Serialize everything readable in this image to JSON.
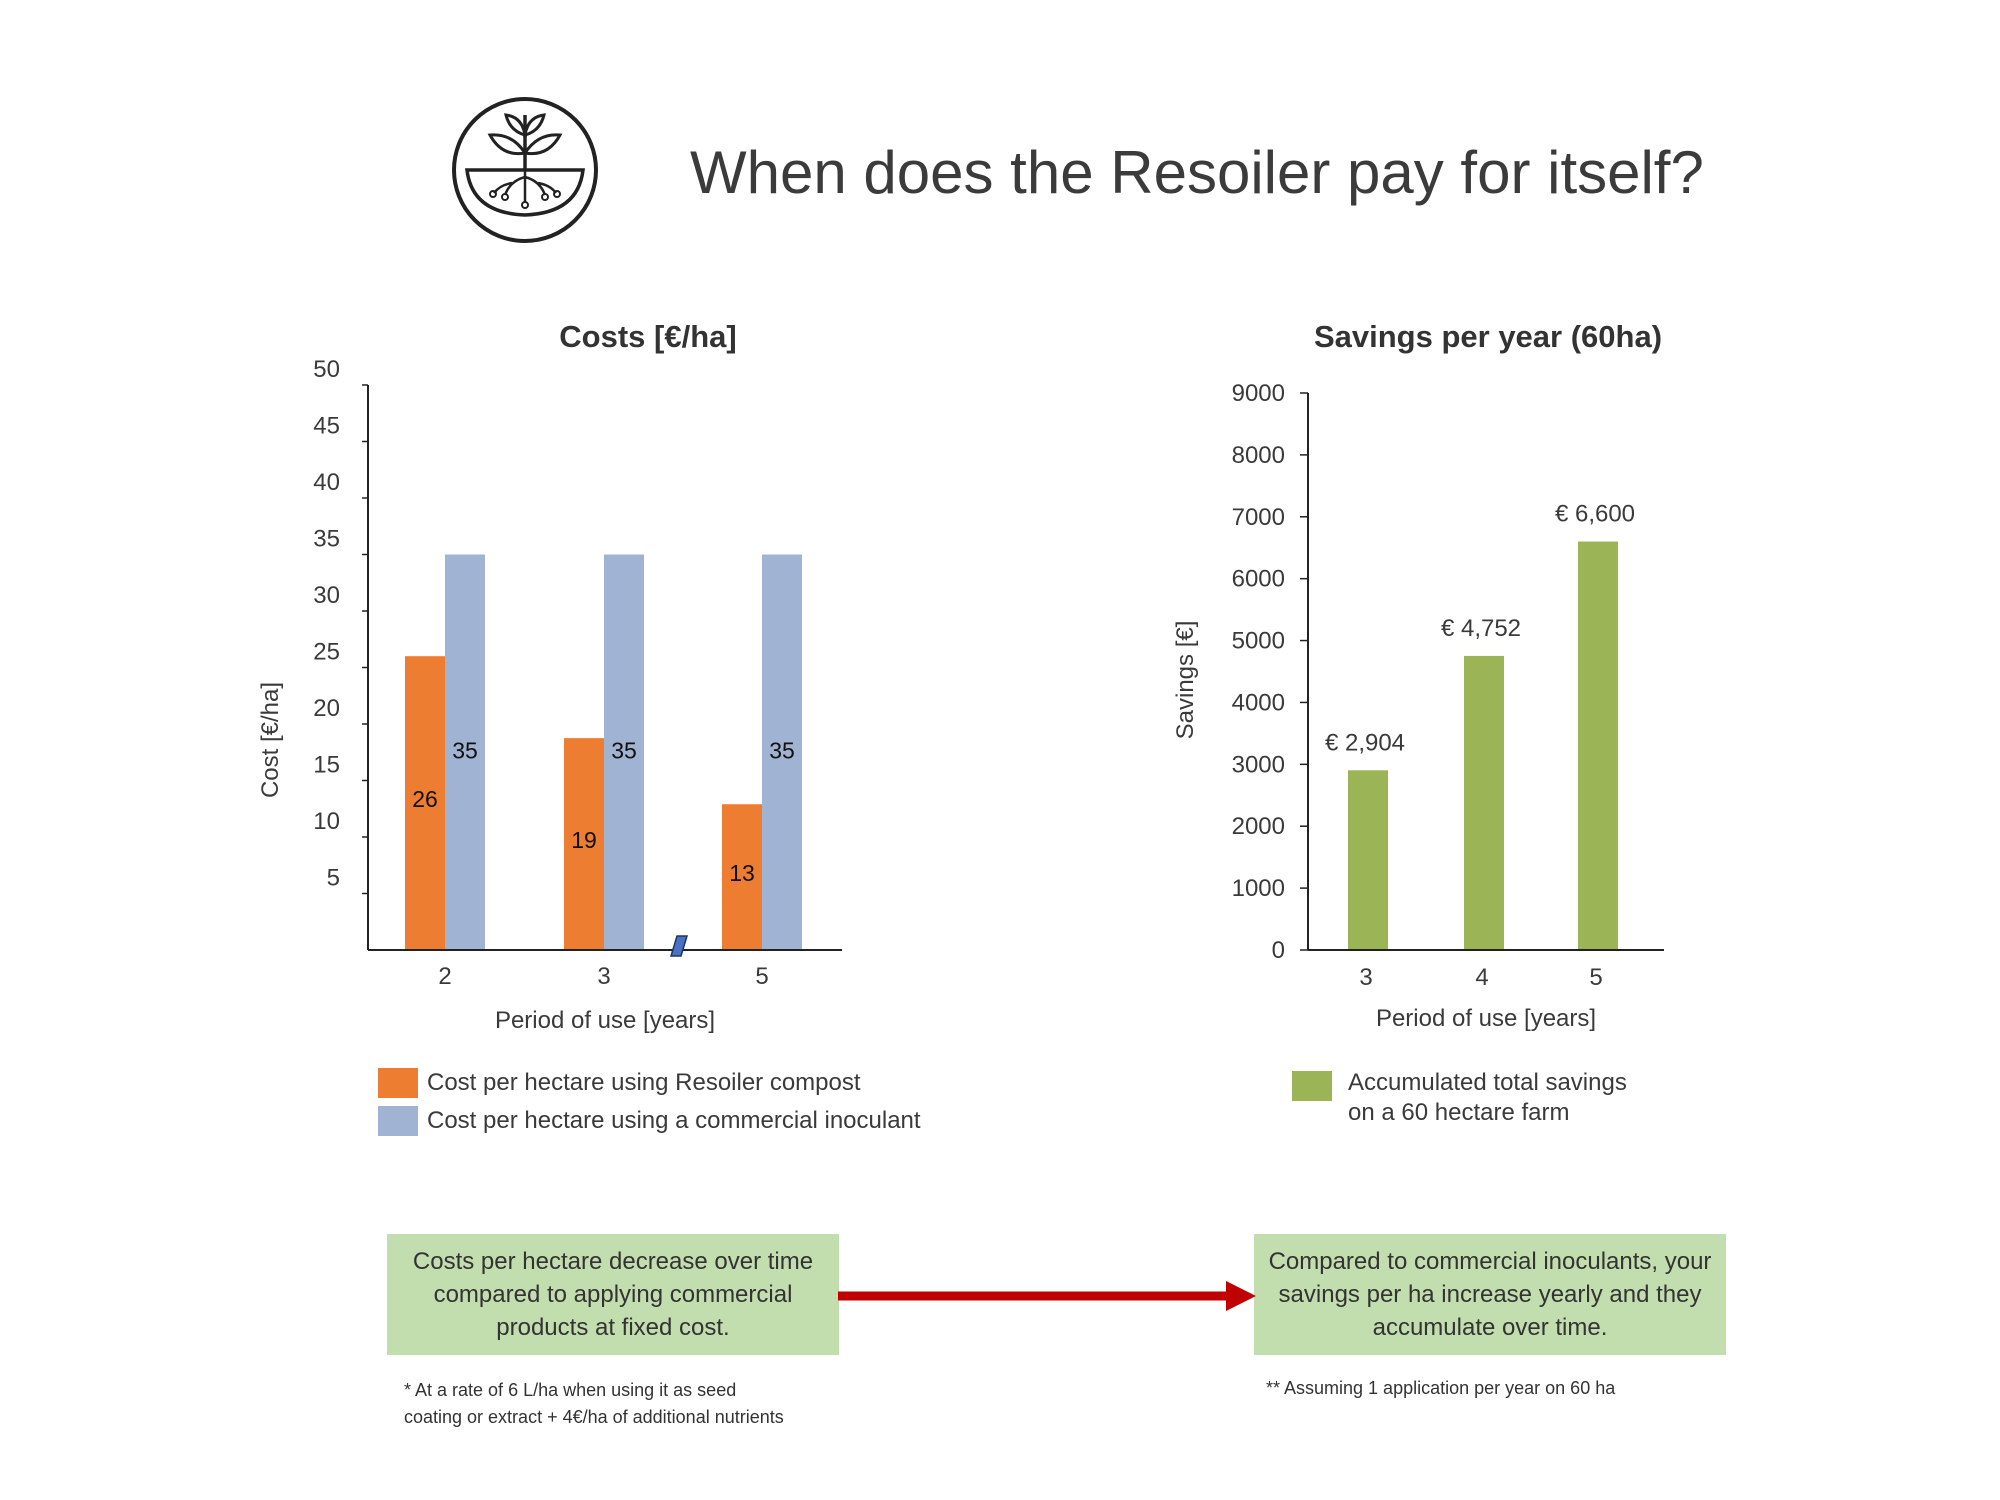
{
  "page": {
    "title": "When does the Resoiler pay for itself?"
  },
  "colors": {
    "resoiler": "#ed7d31",
    "commercial": "#a0b3d3",
    "savings": "#9bb556",
    "callout_bg": "#c3deae",
    "arrow": "#c00000"
  },
  "chart_data": [
    {
      "type": "bar",
      "title": "Costs [€/ha]",
      "xlabel": "Period of use [years]",
      "ylabel": "Cost [€/ha]",
      "ylim": [
        0,
        50
      ],
      "yticks": [
        "50",
        "45",
        "40",
        "35",
        "30",
        "25",
        "20",
        "15",
        "10",
        "5"
      ],
      "categories": [
        "2",
        "3",
        "5"
      ],
      "axis_break_between": [
        "3",
        "5"
      ],
      "grid": false,
      "series": [
        {
          "name": "Cost per hectare using Resoiler compost",
          "values": [
            26,
            18.75,
            12.9
          ],
          "labels": [
            "26",
            "19",
            "13"
          ]
        },
        {
          "name": "Cost per hectare using a commercial inoculant",
          "values": [
            35,
            35,
            35
          ],
          "labels": [
            "35",
            "35",
            "35"
          ]
        }
      ],
      "legend_position": "bottom"
    },
    {
      "type": "bar",
      "title": "Savings per year (60ha)",
      "xlabel": "Period of use [years]",
      "ylabel": "Savings [€]",
      "ylim": [
        0,
        9000
      ],
      "yticks": [
        "9000",
        "8000",
        "7000",
        "6000",
        "5000",
        "4000",
        "3000",
        "2000",
        "1000",
        "0"
      ],
      "categories": [
        "3",
        "4",
        "5"
      ],
      "grid": false,
      "series": [
        {
          "name": "Accumulated total savings on a 60 hectare farm",
          "values": [
            2904,
            4752,
            6600
          ],
          "labels": [
            "€ 2,904",
            "€ 4,752",
            "€ 6,600"
          ]
        }
      ],
      "legend_position": "bottom"
    }
  ],
  "legend_costs": {
    "resoiler": "Cost per hectare using Resoiler compost",
    "commercial": "Cost per hectare using a commercial inoculant"
  },
  "legend_savings": {
    "line1": "Accumulated total savings",
    "line2": "on a 60 hectare farm"
  },
  "callouts": {
    "left": "Costs per hectare decrease over time compared to applying commercial products at fixed cost.",
    "right": "Compared to commercial inoculants, your savings per ha increase yearly and they accumulate over time."
  },
  "footnotes": {
    "left_line1": "* At a rate of 6 L/ha when using it as seed",
    "left_line2": "coating or extract +  4€/ha of additional nutrients",
    "right": "** Assuming 1 application per year on 60 ha"
  }
}
